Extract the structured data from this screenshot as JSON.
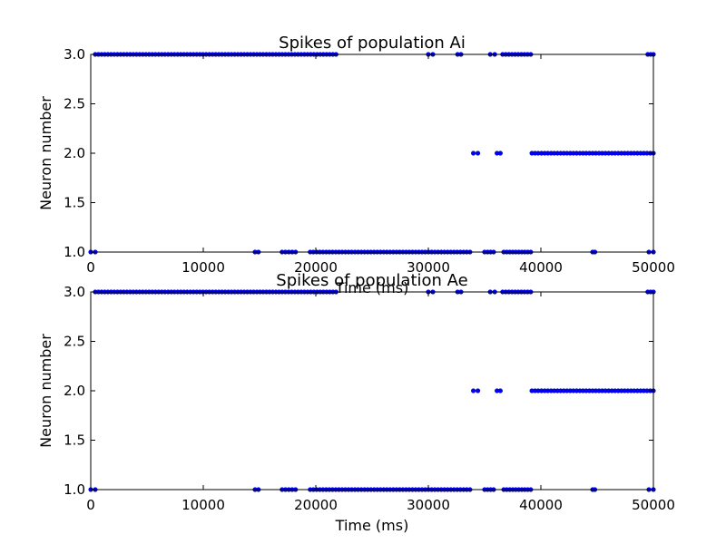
{
  "chart_data": [
    {
      "type": "scatter",
      "title": "Spikes of population Ai",
      "xlabel": "Time (ms)",
      "ylabel": "Neuron number",
      "xlim": [
        0,
        50000
      ],
      "ylim": [
        1.0,
        3.0
      ],
      "xticks": [
        "0",
        "10000",
        "20000",
        "30000",
        "40000",
        "50000"
      ],
      "yticks": [
        "1.0",
        "1.5",
        "2.0",
        "2.5",
        "3.0"
      ],
      "grid": false,
      "marker_color": "#0000ff",
      "series": [
        {
          "y": 3,
          "x_ranges": [
            [
              400,
              21800
            ],
            [
              30000,
              30400
            ],
            [
              32600,
              32900
            ],
            [
              35500,
              35900
            ],
            [
              36600,
              39100
            ],
            [
              49500,
              50000
            ]
          ]
        },
        {
          "y": 2,
          "x_ranges": [
            [
              34000,
              34400
            ],
            [
              36100,
              36400
            ],
            [
              39200,
              50000
            ]
          ]
        },
        {
          "y": 1,
          "x_ranges": [
            [
              0,
              400
            ],
            [
              14600,
              14900
            ],
            [
              17000,
              18200
            ],
            [
              19500,
              33700
            ],
            [
              35000,
              35800
            ],
            [
              36700,
              39100
            ],
            [
              44600,
              44800
            ],
            [
              49600,
              50000
            ]
          ]
        }
      ]
    },
    {
      "type": "scatter",
      "title": "Spikes of population Ae",
      "xlabel": "Time (ms)",
      "ylabel": "Neuron number",
      "xlim": [
        0,
        50000
      ],
      "ylim": [
        1.0,
        3.0
      ],
      "xticks": [
        "0",
        "10000",
        "20000",
        "30000",
        "40000",
        "50000"
      ],
      "yticks": [
        "1.0",
        "1.5",
        "2.0",
        "2.5",
        "3.0"
      ],
      "grid": false,
      "marker_color": "#0000ff",
      "series": [
        {
          "y": 3,
          "x_ranges": [
            [
              400,
              21800
            ],
            [
              30000,
              30400
            ],
            [
              32600,
              32900
            ],
            [
              35500,
              35900
            ],
            [
              36600,
              39100
            ],
            [
              49500,
              50000
            ]
          ]
        },
        {
          "y": 2,
          "x_ranges": [
            [
              34000,
              34400
            ],
            [
              36100,
              36400
            ],
            [
              39200,
              50000
            ]
          ]
        },
        {
          "y": 1,
          "x_ranges": [
            [
              0,
              400
            ],
            [
              14600,
              14900
            ],
            [
              17000,
              18200
            ],
            [
              19500,
              33700
            ],
            [
              35000,
              35800
            ],
            [
              36700,
              39100
            ],
            [
              44600,
              44800
            ],
            [
              49600,
              50000
            ]
          ]
        }
      ]
    }
  ]
}
